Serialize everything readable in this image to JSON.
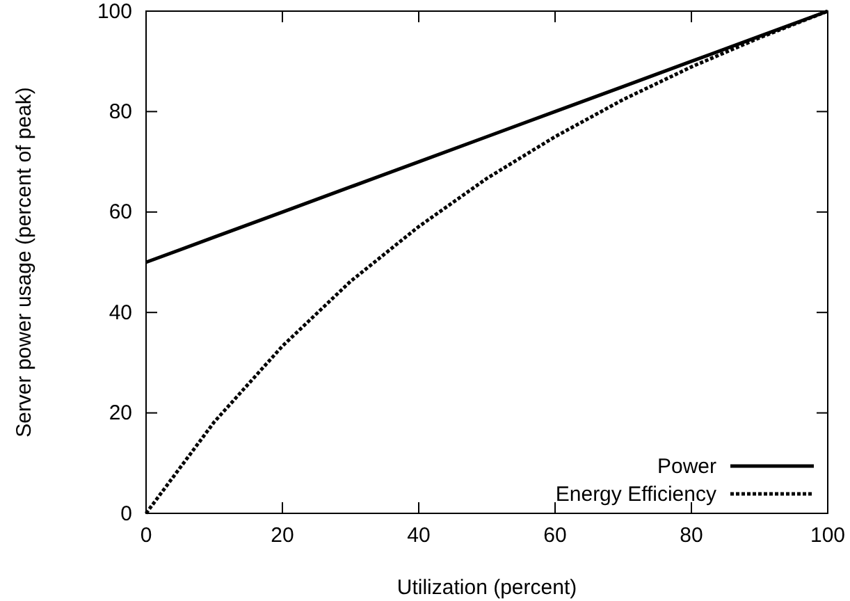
{
  "chart_data": {
    "type": "line",
    "xlabel": "Utilization (percent)",
    "ylabel": "Server power usage (percent of peak)",
    "x": [
      0,
      10,
      20,
      30,
      40,
      50,
      60,
      70,
      80,
      90,
      100
    ],
    "series": [
      {
        "name": "Power",
        "color": "#000000",
        "line_style": "solid",
        "values": [
          50,
          55,
          60,
          65,
          70,
          75,
          80,
          85,
          90,
          95,
          100
        ]
      },
      {
        "name": "Energy Efficiency",
        "color": "#000000",
        "line_style": "dotted",
        "values": [
          0,
          18.2,
          33.3,
          46.2,
          57.1,
          66.7,
          75,
          82.4,
          88.9,
          94.7,
          100
        ]
      }
    ],
    "xlim": [
      0,
      100
    ],
    "ylim": [
      0,
      100
    ],
    "xticks": [
      0,
      20,
      40,
      60,
      80,
      100
    ],
    "yticks": [
      0,
      20,
      40,
      60,
      80,
      100
    ],
    "grid": false,
    "legend": "bottom right",
    "marker": "none"
  }
}
